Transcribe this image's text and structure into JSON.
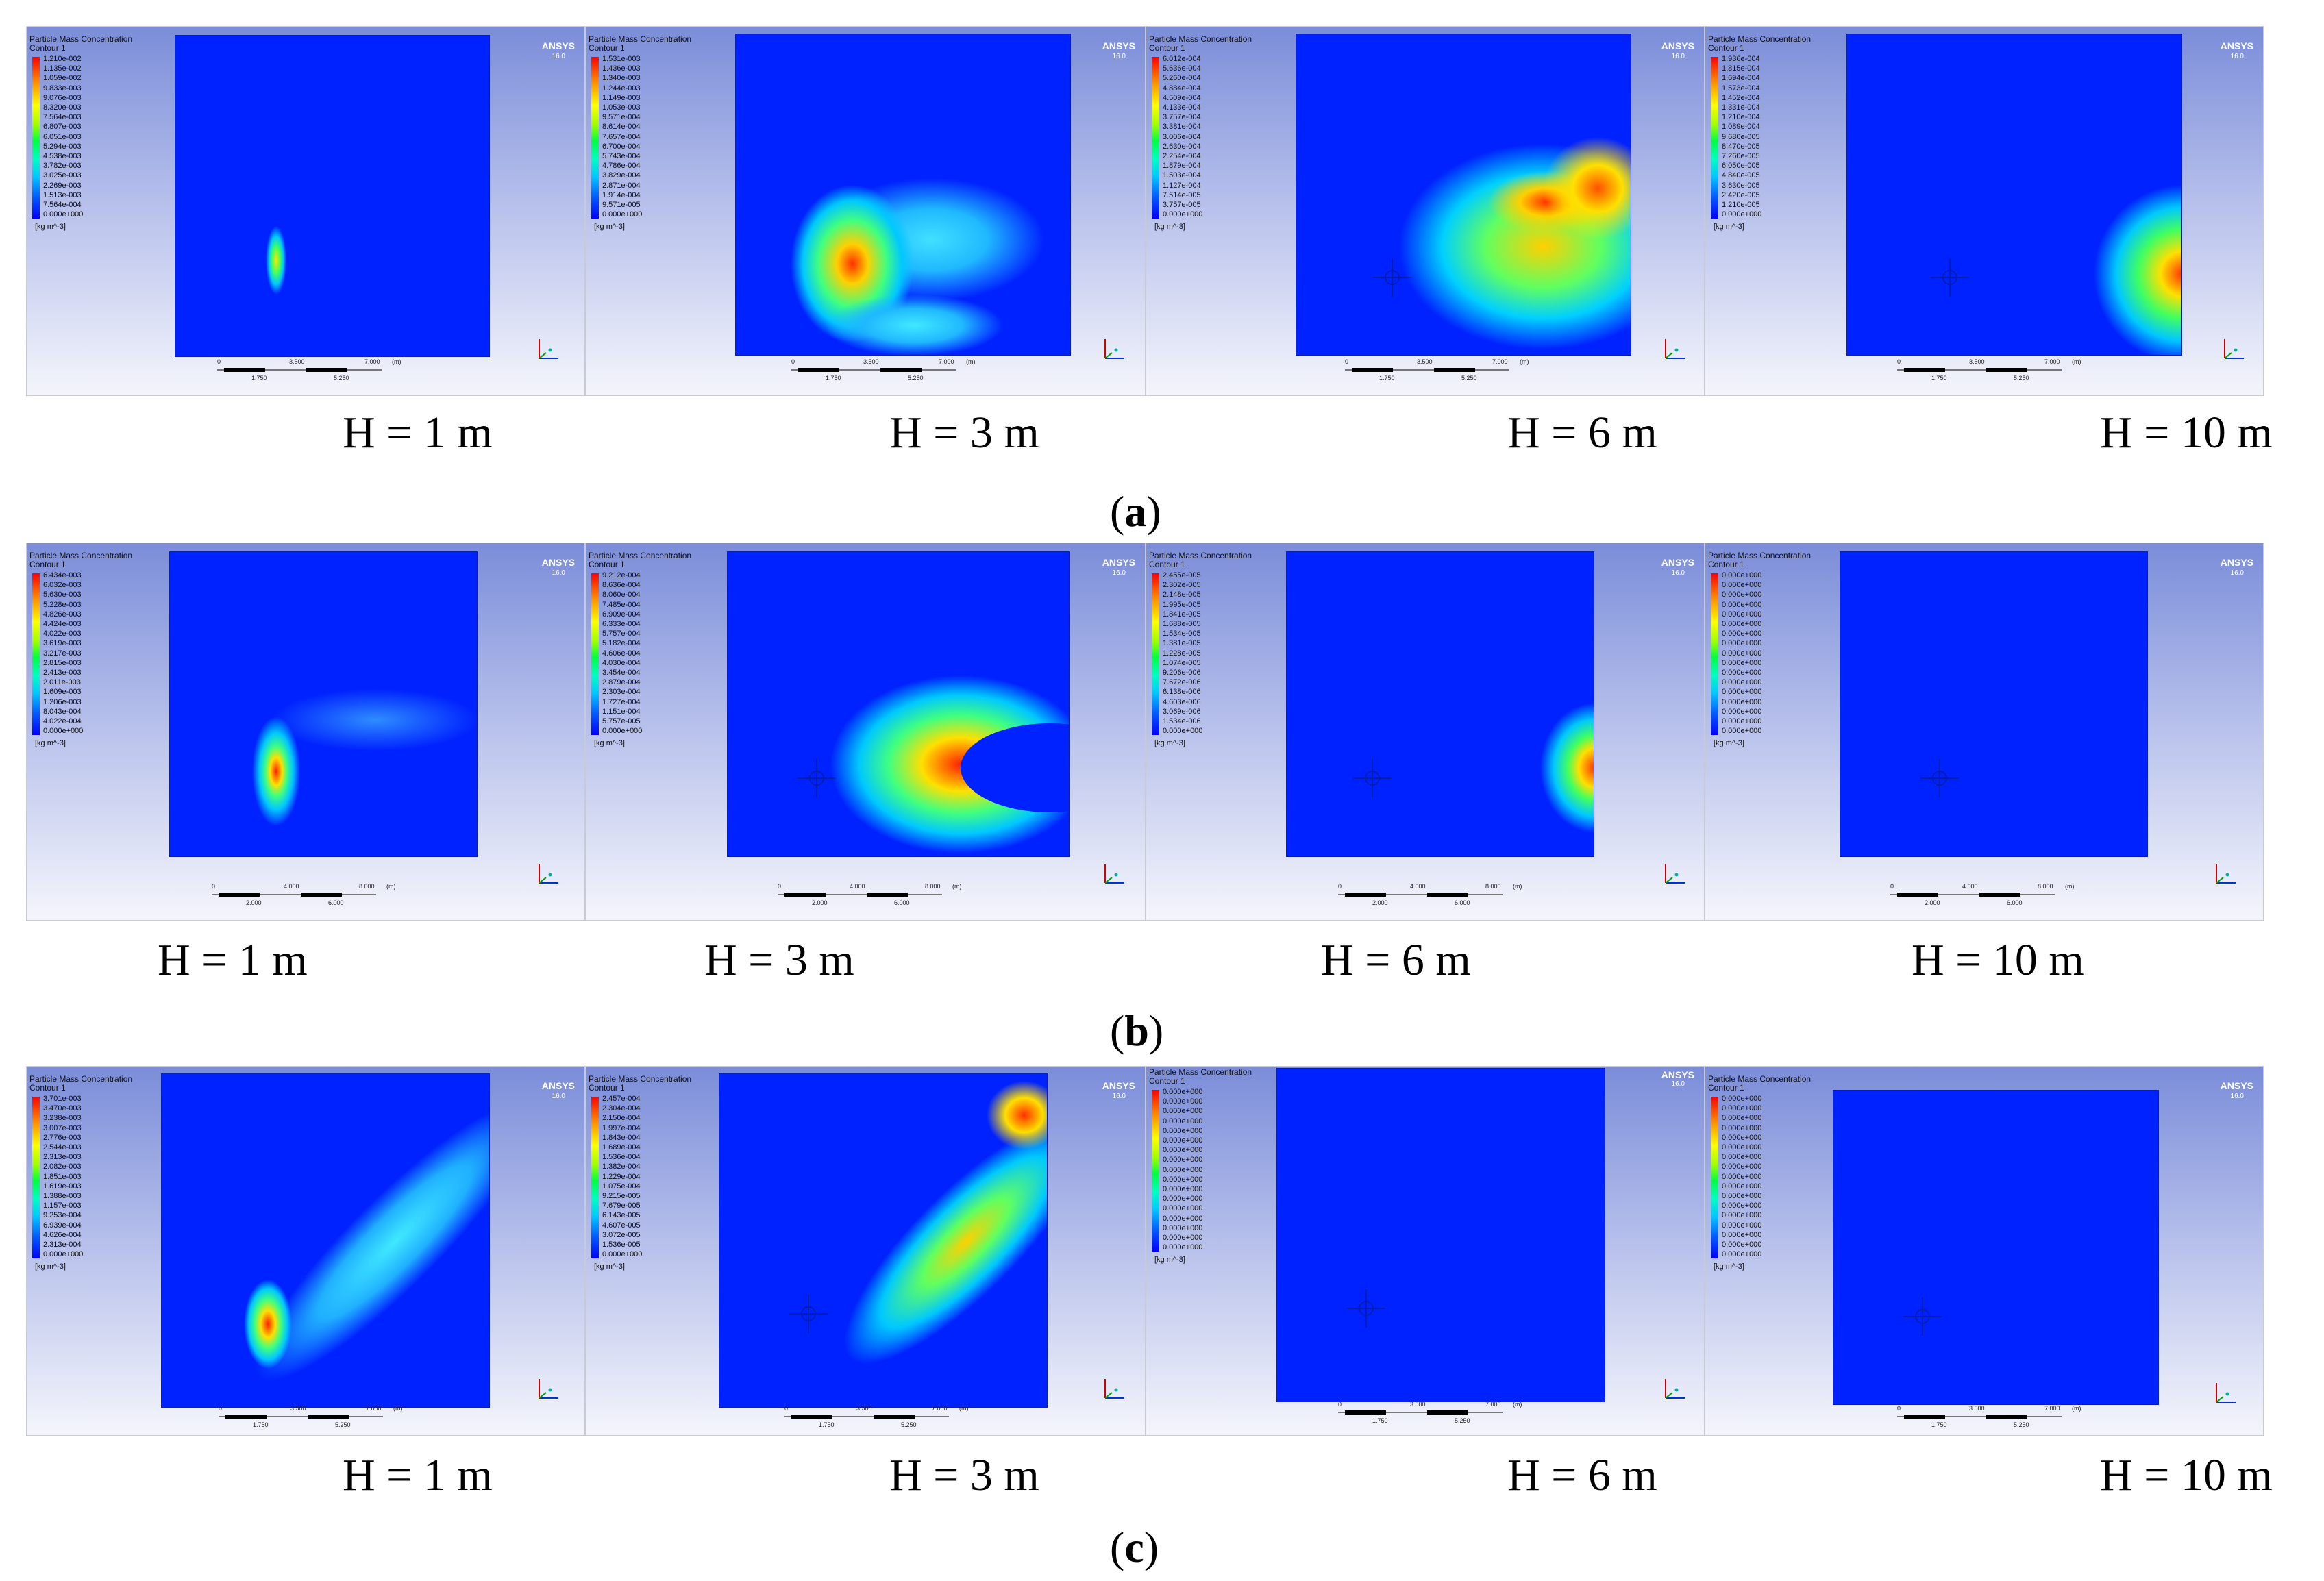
{
  "brand": "ANSYS",
  "brand_version": "16.0",
  "panel_title": [
    "Particle Mass Concentration",
    "Contour 1"
  ],
  "unit": "[kg m^-3]",
  "height_labels": [
    "H = 1 m",
    "H = 3 m",
    "H = 6 m",
    "H = 10 m"
  ],
  "captions": [
    "a",
    "b",
    "c"
  ],
  "scale_text": {
    "row_a": [
      "0",
      "3.500",
      "7.000",
      "(m)",
      "1.750",
      "5.250"
    ],
    "row_b": [
      "0",
      "4.000",
      "8.000",
      "(m)",
      "2.000",
      "6.000"
    ],
    "row_c": [
      "0",
      "3.500",
      "7.000",
      "(m)",
      "1.750",
      "5.250"
    ]
  },
  "legends": {
    "a1": [
      "1.210e-002",
      "1.135e-002",
      "1.059e-002",
      "9.833e-003",
      "9.076e-003",
      "8.320e-003",
      "7.564e-003",
      "6.807e-003",
      "6.051e-003",
      "5.294e-003",
      "4.538e-003",
      "3.782e-003",
      "3.025e-003",
      "2.269e-003",
      "1.513e-003",
      "7.564e-004",
      "0.000e+000"
    ],
    "a2": [
      "1.531e-003",
      "1.436e-003",
      "1.340e-003",
      "1.244e-003",
      "1.149e-003",
      "1.053e-003",
      "9.571e-004",
      "8.614e-004",
      "7.657e-004",
      "6.700e-004",
      "5.743e-004",
      "4.786e-004",
      "3.829e-004",
      "2.871e-004",
      "1.914e-004",
      "9.571e-005",
      "0.000e+000"
    ],
    "a3": [
      "6.012e-004",
      "5.636e-004",
      "5.260e-004",
      "4.884e-004",
      "4.509e-004",
      "4.133e-004",
      "3.757e-004",
      "3.381e-004",
      "3.006e-004",
      "2.630e-004",
      "2.254e-004",
      "1.879e-004",
      "1.503e-004",
      "1.127e-004",
      "7.514e-005",
      "3.757e-005",
      "0.000e+000"
    ],
    "a4": [
      "1.936e-004",
      "1.815e-004",
      "1.694e-004",
      "1.573e-004",
      "1.452e-004",
      "1.331e-004",
      "1.210e-004",
      "1.089e-004",
      "9.680e-005",
      "8.470e-005",
      "7.260e-005",
      "6.050e-005",
      "4.840e-005",
      "3.630e-005",
      "2.420e-005",
      "1.210e-005",
      "0.000e+000"
    ],
    "b1": [
      "6.434e-003",
      "6.032e-003",
      "5.630e-003",
      "5.228e-003",
      "4.826e-003",
      "4.424e-003",
      "4.022e-003",
      "3.619e-003",
      "3.217e-003",
      "2.815e-003",
      "2.413e-003",
      "2.011e-003",
      "1.609e-003",
      "1.206e-003",
      "8.043e-004",
      "4.022e-004",
      "0.000e+000"
    ],
    "b2": [
      "9.212e-004",
      "8.636e-004",
      "8.060e-004",
      "7.485e-004",
      "6.909e-004",
      "6.333e-004",
      "5.757e-004",
      "5.182e-004",
      "4.606e-004",
      "4.030e-004",
      "3.454e-004",
      "2.879e-004",
      "2.303e-004",
      "1.727e-004",
      "1.151e-004",
      "5.757e-005",
      "0.000e+000"
    ],
    "b3": [
      "2.455e-005",
      "2.302e-005",
      "2.148e-005",
      "1.995e-005",
      "1.841e-005",
      "1.688e-005",
      "1.534e-005",
      "1.381e-005",
      "1.228e-005",
      "1.074e-005",
      "9.206e-006",
      "7.672e-006",
      "6.138e-006",
      "4.603e-006",
      "3.069e-006",
      "1.534e-006",
      "0.000e+000"
    ],
    "b4": [
      "0.000e+000",
      "0.000e+000",
      "0.000e+000",
      "0.000e+000",
      "0.000e+000",
      "0.000e+000",
      "0.000e+000",
      "0.000e+000",
      "0.000e+000",
      "0.000e+000",
      "0.000e+000",
      "0.000e+000",
      "0.000e+000",
      "0.000e+000",
      "0.000e+000",
      "0.000e+000",
      "0.000e+000"
    ],
    "c1": [
      "3.701e-003",
      "3.470e-003",
      "3.238e-003",
      "3.007e-003",
      "2.776e-003",
      "2.544e-003",
      "2.313e-003",
      "2.082e-003",
      "1.851e-003",
      "1.619e-003",
      "1.388e-003",
      "1.157e-003",
      "9.253e-004",
      "6.939e-004",
      "4.626e-004",
      "2.313e-004",
      "0.000e+000"
    ],
    "c2": [
      "2.457e-004",
      "2.304e-004",
      "2.150e-004",
      "1.997e-004",
      "1.843e-004",
      "1.689e-004",
      "1.536e-004",
      "1.382e-004",
      "1.229e-004",
      "1.075e-004",
      "9.215e-005",
      "7.679e-005",
      "6.143e-005",
      "4.607e-005",
      "3.072e-005",
      "1.536e-005",
      "0.000e+000"
    ],
    "c3": [
      "0.000e+000",
      "0.000e+000",
      "0.000e+000",
      "0.000e+000",
      "0.000e+000",
      "0.000e+000",
      "0.000e+000",
      "0.000e+000",
      "0.000e+000",
      "0.000e+000",
      "0.000e+000",
      "0.000e+000",
      "0.000e+000",
      "0.000e+000",
      "0.000e+000",
      "0.000e+000",
      "0.000e+000"
    ],
    "c4": [
      "0.000e+000",
      "0.000e+000",
      "0.000e+000",
      "0.000e+000",
      "0.000e+000",
      "0.000e+000",
      "0.000e+000",
      "0.000e+000",
      "0.000e+000",
      "0.000e+000",
      "0.000e+000",
      "0.000e+000",
      "0.000e+000",
      "0.000e+000",
      "0.000e+000",
      "0.000e+000",
      "0.000e+000"
    ]
  }
}
